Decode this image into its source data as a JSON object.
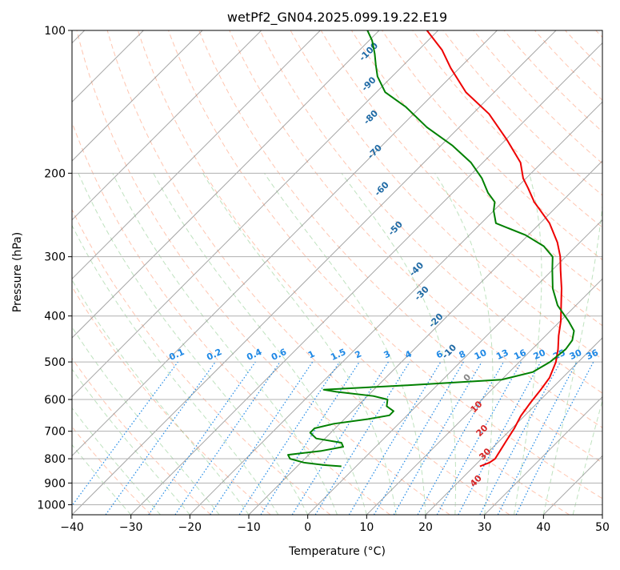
{
  "chart_data": {
    "type": "skew-t",
    "title": "wetPf2_GN04.2025.099.19.22.E19",
    "xlabel": "Temperature (°C)",
    "ylabel": "Pressure (hPa)",
    "xlim": [
      -40,
      50
    ],
    "ylim_hpa": [
      1050,
      100
    ],
    "y_scale": "log",
    "grid": true,
    "x_ticks": [
      "−40",
      "−30",
      "−20",
      "−10",
      "0",
      "10",
      "20",
      "30",
      "40",
      "50"
    ],
    "y_ticks": [
      "100",
      "200",
      "300",
      "400",
      "500",
      "600",
      "700",
      "800",
      "900",
      "1000"
    ],
    "isotherm_labels": [
      "-100",
      "-90",
      "-80",
      "-70",
      "-60",
      "-50",
      "-40",
      "-30",
      "-20",
      "-10",
      "0",
      "10",
      "20",
      "30",
      "40"
    ],
    "mixing_ratio_labels": [
      "0.1",
      "0.2",
      "0.4",
      "0.6",
      "1",
      "1.5",
      "2",
      "3",
      "4",
      "6",
      "8",
      "10",
      "13",
      "16",
      "20",
      "25",
      "30",
      "36"
    ],
    "colors": {
      "temperature": "#ee0000",
      "dewpoint": "#008000",
      "isotherm_cold": "#1f6aa5",
      "isotherm_zero": "#888888",
      "isotherm_warm": "#d62728",
      "mixing_ratio": "#1e88e5",
      "dry_adiabat": "#ff7f50",
      "moist_adiabat": "#2ca02c",
      "skew_line": "#808080",
      "grid": "#b0b0b0"
    },
    "series": [
      {
        "name": "",
        "kind": "temperature",
        "points": [
          {
            "p": 830,
            "t": 21.0
          },
          {
            "p": 815,
            "t": 22.0
          },
          {
            "p": 800,
            "t": 22.3
          },
          {
            "p": 770,
            "t": 21.8
          },
          {
            "p": 730,
            "t": 21.1
          },
          {
            "p": 690,
            "t": 20.4
          },
          {
            "p": 650,
            "t": 19.4
          },
          {
            "p": 610,
            "t": 18.8
          },
          {
            "p": 570,
            "t": 18.3
          },
          {
            "p": 540,
            "t": 17.8
          },
          {
            "p": 500,
            "t": 16.2
          },
          {
            "p": 470,
            "t": 14.4
          },
          {
            "p": 440,
            "t": 12.2
          },
          {
            "p": 410,
            "t": 10.1
          },
          {
            "p": 380,
            "t": 7.5
          },
          {
            "p": 350,
            "t": 4.7
          },
          {
            "p": 320,
            "t": 1.4
          },
          {
            "p": 300,
            "t": -0.9
          },
          {
            "p": 280,
            "t": -3.8
          },
          {
            "p": 255,
            "t": -8.4
          },
          {
            "p": 230,
            "t": -14.6
          },
          {
            "p": 215,
            "t": -18.0
          },
          {
            "p": 205,
            "t": -20.5
          },
          {
            "p": 190,
            "t": -23.6
          },
          {
            "p": 170,
            "t": -29.8
          },
          {
            "p": 150,
            "t": -37.2
          },
          {
            "p": 135,
            "t": -44.8
          },
          {
            "p": 120,
            "t": -51.5
          },
          {
            "p": 110,
            "t": -56.0
          },
          {
            "p": 100,
            "t": -61.9
          }
        ]
      },
      {
        "name": "",
        "kind": "dewpoint",
        "points": [
          {
            "p": 830,
            "t": -2.5
          },
          {
            "p": 825,
            "t": -5.5
          },
          {
            "p": 815,
            "t": -9.5
          },
          {
            "p": 800,
            "t": -12.5
          },
          {
            "p": 785,
            "t": -13.5
          },
          {
            "p": 770,
            "t": -8.5
          },
          {
            "p": 755,
            "t": -5.5
          },
          {
            "p": 740,
            "t": -6.5
          },
          {
            "p": 725,
            "t": -11.5
          },
          {
            "p": 705,
            "t": -13.5
          },
          {
            "p": 690,
            "t": -13.5
          },
          {
            "p": 675,
            "t": -11.0
          },
          {
            "p": 660,
            "t": -6.0
          },
          {
            "p": 648,
            "t": -3.0
          },
          {
            "p": 635,
            "t": -3.0
          },
          {
            "p": 620,
            "t": -5.0
          },
          {
            "p": 600,
            "t": -6.0
          },
          {
            "p": 590,
            "t": -9.0
          },
          {
            "p": 578,
            "t": -16.0
          },
          {
            "p": 572,
            "t": -18.5
          },
          {
            "p": 560,
            "t": -5.0
          },
          {
            "p": 545,
            "t": 10.0
          },
          {
            "p": 525,
            "t": 14.0
          },
          {
            "p": 500,
            "t": 15.2
          },
          {
            "p": 470,
            "t": 15.7
          },
          {
            "p": 450,
            "t": 15.3
          },
          {
            "p": 430,
            "t": 14.0
          },
          {
            "p": 410,
            "t": 11.4
          },
          {
            "p": 380,
            "t": 6.9
          },
          {
            "p": 350,
            "t": 3.2
          },
          {
            "p": 320,
            "t": 0.0
          },
          {
            "p": 300,
            "t": -2.2
          },
          {
            "p": 285,
            "t": -5.5
          },
          {
            "p": 270,
            "t": -10.5
          },
          {
            "p": 255,
            "t": -17.5
          },
          {
            "p": 240,
            "t": -20.0
          },
          {
            "p": 230,
            "t": -21.3
          },
          {
            "p": 220,
            "t": -24.0
          },
          {
            "p": 205,
            "t": -27.5
          },
          {
            "p": 190,
            "t": -32.0
          },
          {
            "p": 175,
            "t": -38.0
          },
          {
            "p": 160,
            "t": -45.5
          },
          {
            "p": 145,
            "t": -52.5
          },
          {
            "p": 135,
            "t": -58.5
          },
          {
            "p": 125,
            "t": -62.5
          },
          {
            "p": 118,
            "t": -64.8
          },
          {
            "p": 112,
            "t": -66.8
          },
          {
            "p": 105,
            "t": -69.5
          },
          {
            "p": 100,
            "t": -72.0
          }
        ]
      }
    ]
  }
}
